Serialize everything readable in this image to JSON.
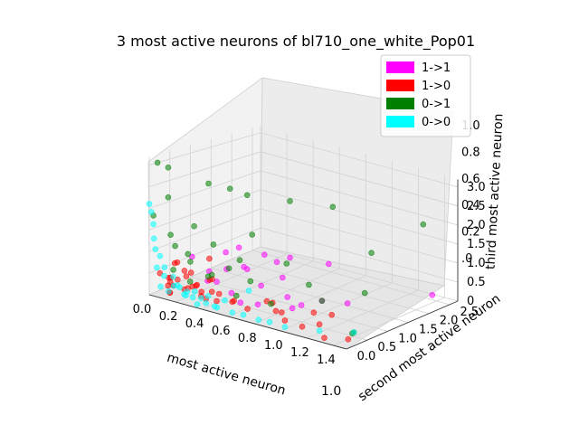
{
  "chart_data": {
    "type": "scatter",
    "title": "3 most active neurons of bl710_one_white_Pop01",
    "xlabel": "most active neuron",
    "ylabel": "second most active neuron",
    "zlabel": "third most active neuron",
    "x_ticks": [
      "0.0",
      "0.2",
      "0.4",
      "0.6",
      "0.8",
      "1.0",
      "1.2",
      "1.4"
    ],
    "y_ticks": [
      "0.0",
      "0.5",
      "1.0",
      "1.5",
      "2.0",
      "2.5"
    ],
    "z_ticks_right": [
      "0",
      "0.5",
      "1.0",
      "1.5",
      "2.0",
      "2.5",
      "3.0"
    ],
    "z_ticks_left": [
      ".0",
      "0.2",
      "0.4",
      "0.6",
      "0.8",
      "1.0"
    ],
    "y_overlap_label": "1.0",
    "xlim": [
      0,
      1.5
    ],
    "ylim": [
      0,
      2.7
    ],
    "zlim": [
      0,
      3.2
    ],
    "legend_position": "top-right",
    "grid": true,
    "series": [
      {
        "name": "1->1",
        "color": "#ff00ff",
        "points": [
          [
            0.4,
            0.9,
            1.1
          ],
          [
            0.5,
            1.2,
            0.9
          ],
          [
            0.6,
            1.5,
            0.8
          ],
          [
            0.7,
            1.0,
            0.6
          ],
          [
            0.8,
            1.8,
            0.7
          ],
          [
            1.4,
            2.4,
            0.2
          ],
          [
            0.5,
            0.4,
            0.3
          ],
          [
            1.0,
            1.0,
            0.3
          ],
          [
            0.4,
            0.6,
            0.7
          ],
          [
            0.6,
            0.8,
            0.4
          ],
          [
            0.7,
            0.4,
            0.2
          ],
          [
            1.0,
            0.5,
            0.4
          ],
          [
            0.4,
            1.1,
            0.5
          ],
          [
            0.5,
            0.7,
            0.8
          ],
          [
            0.3,
            0.5,
            0.6
          ],
          [
            0.8,
            0.8,
            0.3
          ],
          [
            0.5,
            1.5,
            0.6
          ],
          [
            0.35,
            0.3,
            0.5
          ],
          [
            0.6,
            0.3,
            0.2
          ],
          [
            1.1,
            1.3,
            0.2
          ],
          [
            0.45,
            0.2,
            0.6
          ],
          [
            0.9,
            0.6,
            0.2
          ],
          [
            0.3,
            0.9,
            0.9
          ],
          [
            0.2,
            0.4,
            0.9
          ]
        ]
      },
      {
        "name": "1->0",
        "color": "#ff0000",
        "points": [
          [
            0.05,
            0.1,
            0.5
          ],
          [
            0.1,
            0.2,
            0.4
          ],
          [
            0.15,
            0.1,
            0.3
          ],
          [
            0.2,
            0.3,
            0.2
          ],
          [
            0.25,
            0.1,
            0.6
          ],
          [
            0.3,
            0.2,
            0.4
          ],
          [
            0.35,
            0.15,
            0.3
          ],
          [
            0.4,
            0.1,
            0.2
          ],
          [
            0.1,
            0.3,
            0.7
          ],
          [
            0.2,
            0.05,
            0.5
          ],
          [
            0.3,
            0.3,
            0.1
          ],
          [
            0.15,
            0.2,
            0.8
          ],
          [
            0.25,
            0.25,
            0.3
          ],
          [
            0.05,
            0.35,
            0.2
          ],
          [
            0.45,
            0.2,
            0.15
          ],
          [
            0.5,
            0.1,
            0.4
          ],
          [
            0.12,
            0.12,
            0.1
          ],
          [
            0.18,
            0.28,
            0.6
          ],
          [
            0.08,
            0.2,
            0.2
          ],
          [
            0.28,
            0.12,
            0.7
          ],
          [
            0.35,
            0.35,
            0.5
          ],
          [
            0.4,
            0.25,
            0.6
          ],
          [
            0.6,
            0.1,
            0.3
          ],
          [
            0.7,
            0.15,
            0.2
          ],
          [
            0.8,
            0.3,
            0.4
          ],
          [
            0.9,
            0.2,
            0.3
          ],
          [
            1.0,
            0.1,
            0.2
          ],
          [
            1.1,
            0.2,
            0.1
          ],
          [
            1.2,
            0.3,
            0.2
          ],
          [
            1.3,
            0.1,
            0.05
          ],
          [
            1.45,
            0.2,
            0.1
          ],
          [
            1.2,
            0.6,
            0.3
          ],
          [
            1.0,
            0.8,
            0.1
          ],
          [
            0.75,
            0.6,
            0.2
          ],
          [
            0.3,
            0.5,
            0.9
          ],
          [
            0.22,
            0.15,
            0.25
          ],
          [
            0.14,
            0.05,
            0.15
          ],
          [
            0.33,
            0.08,
            0.45
          ],
          [
            0.42,
            0.18,
            0.35
          ],
          [
            0.07,
            0.25,
            0.35
          ],
          [
            0.55,
            0.3,
            0.2
          ],
          [
            0.85,
            0.5,
            0.1
          ]
        ]
      },
      {
        "name": "0->1",
        "color": "#008000",
        "points": [
          [
            0.0,
            0.2,
            3.0
          ],
          [
            0.05,
            0.3,
            2.9
          ],
          [
            0.2,
            0.8,
            2.5
          ],
          [
            0.3,
            1.0,
            2.4
          ],
          [
            0.4,
            1.1,
            2.3
          ],
          [
            0.6,
            1.5,
            2.2
          ],
          [
            0.8,
            1.9,
            2.1
          ],
          [
            1.3,
            2.5,
            1.9
          ],
          [
            1.0,
            2.2,
            1.0
          ],
          [
            0.3,
            0.6,
            1.2
          ],
          [
            0.1,
            0.2,
            1.4
          ],
          [
            0.2,
            0.3,
            1.0
          ],
          [
            0.0,
            0.1,
            1.8
          ],
          [
            0.5,
            0.9,
            1.5
          ],
          [
            0.7,
            1.1,
            0.9
          ],
          [
            0.5,
            0.6,
            1.0
          ],
          [
            0.9,
            1.0,
            0.6
          ],
          [
            1.2,
            1.4,
            0.5
          ],
          [
            1.0,
            1.0,
            0.3
          ],
          [
            1.45,
            0.3,
            0.2
          ],
          [
            1.4,
            0.5,
            0.1
          ],
          [
            0.8,
            0.4,
            0.3
          ],
          [
            0.6,
            0.2,
            0.4
          ],
          [
            0.4,
            0.15,
            0.7
          ],
          [
            0.25,
            0.2,
            0.9
          ],
          [
            0.15,
            0.15,
            1.2
          ],
          [
            0.35,
            0.4,
            0.6
          ],
          [
            0.45,
            0.5,
            0.8
          ],
          [
            0.55,
            0.7,
            0.5
          ],
          [
            0.05,
            0.3,
            2.2
          ],
          [
            0.2,
            0.45,
            1.6
          ],
          [
            0.12,
            0.2,
            0.6
          ],
          [
            0.28,
            0.1,
            0.5
          ]
        ]
      },
      {
        "name": "0->0",
        "color": "#00ffff",
        "points": [
          [
            0.0,
            0.0,
            2.1
          ],
          [
            0.0,
            0.05,
            1.9
          ],
          [
            0.0,
            0.1,
            1.6
          ],
          [
            0.02,
            0.05,
            1.3
          ],
          [
            0.0,
            0.15,
            1.0
          ],
          [
            0.05,
            0.1,
            0.9
          ],
          [
            0.1,
            0.05,
            0.7
          ],
          [
            0.15,
            0.1,
            0.5
          ],
          [
            0.05,
            0.2,
            0.4
          ],
          [
            0.2,
            0.1,
            0.3
          ],
          [
            0.25,
            0.05,
            0.2
          ],
          [
            0.3,
            0.1,
            0.15
          ],
          [
            0.1,
            0.15,
            0.1
          ],
          [
            0.35,
            0.05,
            0.05
          ],
          [
            0.4,
            0.1,
            0.1
          ],
          [
            0.45,
            0.15,
            0.05
          ],
          [
            0.5,
            0.05,
            0.1
          ],
          [
            0.6,
            0.1,
            0.05
          ],
          [
            0.7,
            0.05,
            0.1
          ],
          [
            0.8,
            0.1,
            0.05
          ],
          [
            0.9,
            0.05,
            0.1
          ],
          [
            1.0,
            0.1,
            0.05
          ],
          [
            1.2,
            0.3,
            0.05
          ],
          [
            1.4,
            0.5,
            0.1
          ],
          [
            0.6,
            0.5,
            0.4
          ],
          [
            0.3,
            0.3,
            0.05
          ],
          [
            0.2,
            0.25,
            0.05
          ],
          [
            0.08,
            0.02,
            0.25
          ],
          [
            0.18,
            0.02,
            0.35
          ],
          [
            0.02,
            0.12,
            0.6
          ],
          [
            0.28,
            0.02,
            0.3
          ],
          [
            0.38,
            0.22,
            0.2
          ],
          [
            0.48,
            0.3,
            0.15
          ],
          [
            0.12,
            0.3,
            0.2
          ],
          [
            0.22,
            0.4,
            0.1
          ]
        ]
      }
    ]
  }
}
